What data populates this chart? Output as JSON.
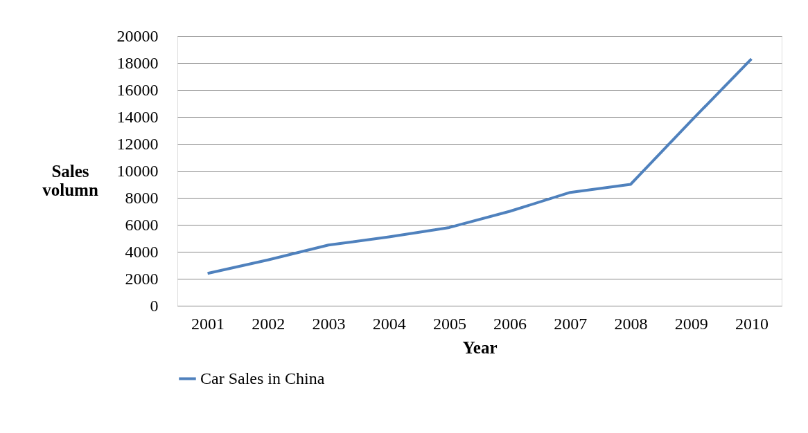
{
  "chart_data": {
    "type": "line",
    "xlabel": "Year",
    "ylabel": "Sales volumn",
    "categories": [
      "2001",
      "2002",
      "2003",
      "2004",
      "2005",
      "2006",
      "2007",
      "2008",
      "2009",
      "2010"
    ],
    "series": [
      {
        "name": "Car Sales in China",
        "color": "#4f81bd",
        "values": [
          2400,
          3400,
          4500,
          5100,
          5800,
          7000,
          8400,
          9000,
          13700,
          18300
        ]
      }
    ],
    "ylim": [
      0,
      20000
    ],
    "yticks": [
      0,
      2000,
      4000,
      6000,
      8000,
      10000,
      12000,
      14000,
      16000,
      18000,
      20000
    ],
    "grid": "y",
    "legend": "bottom",
    "marker": "none",
    "line_style": "solid"
  }
}
